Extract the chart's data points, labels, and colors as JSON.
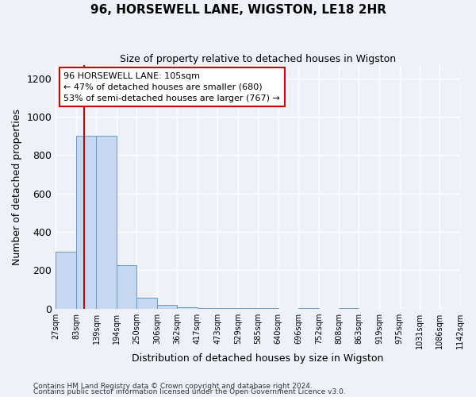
{
  "title": "96, HORSEWELL LANE, WIGSTON, LE18 2HR",
  "subtitle": "Size of property relative to detached houses in Wigston",
  "xlabel": "Distribution of detached houses by size in Wigston",
  "ylabel": "Number of detached properties",
  "bin_edges": [
    27,
    83,
    139,
    194,
    250,
    306,
    362,
    417,
    473,
    529,
    585,
    640,
    696,
    752,
    808,
    863,
    919,
    975,
    1031,
    1086,
    1142
  ],
  "bin_labels": [
    "27sqm",
    "83sqm",
    "139sqm",
    "194sqm",
    "250sqm",
    "306sqm",
    "362sqm",
    "417sqm",
    "473sqm",
    "529sqm",
    "585sqm",
    "640sqm",
    "696sqm",
    "752sqm",
    "808sqm",
    "863sqm",
    "919sqm",
    "975sqm",
    "1031sqm",
    "1086sqm",
    "1142sqm"
  ],
  "counts": [
    295,
    900,
    900,
    225,
    55,
    20,
    5,
    3,
    2,
    1,
    1,
    0,
    1,
    0,
    1,
    0,
    0,
    0,
    0,
    0
  ],
  "bar_color": "#c5d8f0",
  "bar_edge_color": "#6699cc",
  "property_size": 105,
  "red_line_color": "#cc0000",
  "annotation_line1": "96 HORSEWELL LANE: 105sqm",
  "annotation_line2": "← 47% of detached houses are smaller (680)",
  "annotation_line3": "53% of semi-detached houses are larger (767) →",
  "annotation_box_color": "#ffffff",
  "annotation_border_color": "#cc0000",
  "ylim": [
    0,
    1270
  ],
  "yticks": [
    0,
    200,
    400,
    600,
    800,
    1000,
    1200
  ],
  "footnote1": "Contains HM Land Registry data © Crown copyright and database right 2024.",
  "footnote2": "Contains public sector information licensed under the Open Government Licence v3.0.",
  "background_color": "#eef2f8",
  "grid_color": "#ffffff"
}
